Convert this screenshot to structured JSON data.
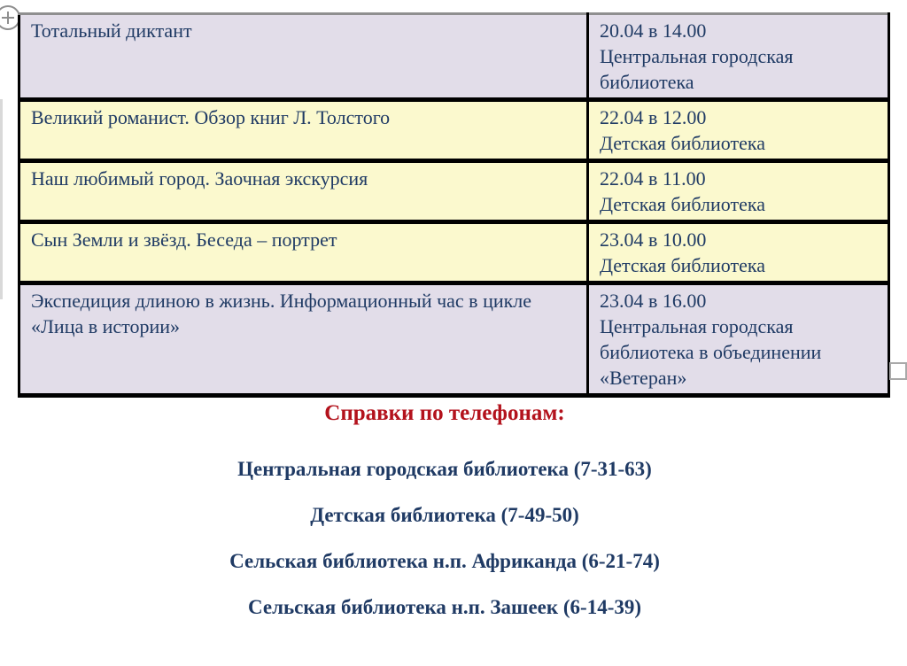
{
  "colors": {
    "lavender": "#e2dde9",
    "yellow": "#fbf9ce",
    "table_text": "#1f3a64",
    "heading_red": "#b3121c",
    "contact_blue": "#1f3a64",
    "border_black": "#000000",
    "handle_gray": "#8f8f8f"
  },
  "icons": {
    "move_handle": "plus-in-circle",
    "resize_handle": "small-square"
  },
  "table": {
    "columns": [
      "event",
      "when_where"
    ],
    "rows": [
      {
        "event": "Тотальный диктант",
        "when": "20.04 в 14.00",
        "where": "Центральная городская библиотека",
        "theme": "lavender"
      },
      {
        "event": "Великий романист. Обзор книг Л. Толстого",
        "when": "22.04 в 12.00",
        "where": "Детская библиотека",
        "theme": "yellow"
      },
      {
        "event": "Наш любимый город. Заочная экскурсия",
        "when": "22.04 в 11.00",
        "where": "Детская библиотека",
        "theme": "yellow"
      },
      {
        "event": "Сын Земли и звёзд. Беседа – портрет",
        "when": "23.04 в 10.00",
        "where": "Детская библиотека",
        "theme": "yellow"
      },
      {
        "event": "Экспедиция длиною в жизнь. Информационный час в цикле «Лица в истории»",
        "when": "23.04 в 16.00",
        "where": "Центральная городская библиотека в объединении «Ветеран»",
        "theme": "lavender"
      }
    ]
  },
  "contacts": {
    "heading": "Справки по телефонам:",
    "lines": [
      "Центральная городская библиотека (7-31-63)",
      "Детская библиотека (7-49-50)",
      "Сельская библиотека н.п. Африканда (6-21-74)",
      "Сельская библиотека н.п. Зашеек (6-14-39)"
    ]
  }
}
